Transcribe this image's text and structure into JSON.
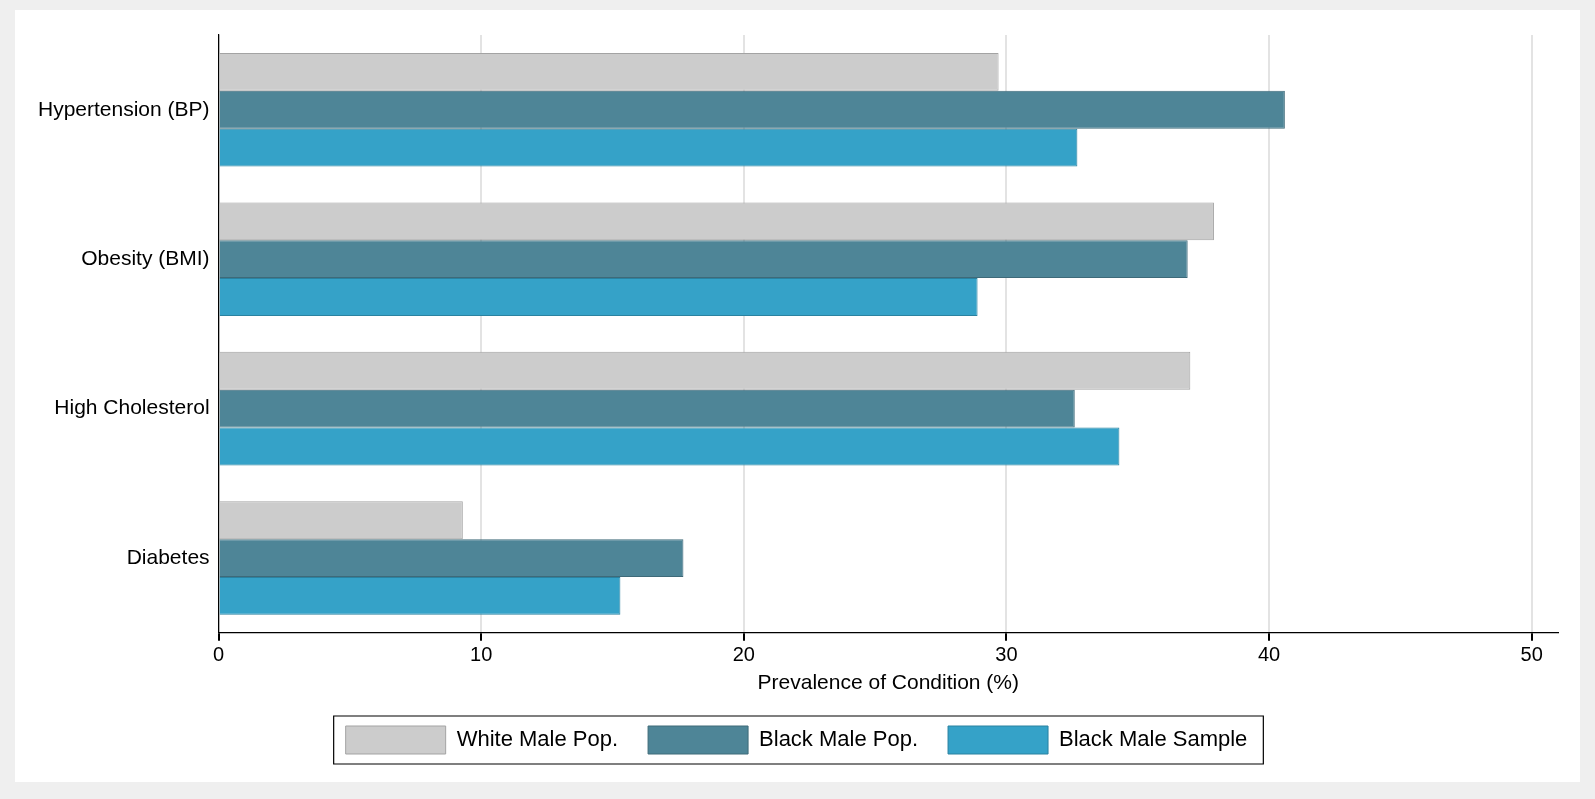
{
  "chart_data": {
    "type": "bar",
    "orientation": "horizontal",
    "categories": [
      "Hypertension (BP)",
      "Obesity (BMI)",
      "High Cholesterol",
      "Diabetes"
    ],
    "series": [
      {
        "name": "White Male Pop.",
        "color": "#cccccc",
        "values": [
          29.7,
          37.9,
          37.0,
          9.3
        ]
      },
      {
        "name": "Black Male Pop.",
        "color": "#4e8597",
        "values": [
          40.6,
          36.9,
          32.6,
          17.7
        ]
      },
      {
        "name": "Black Male Sample",
        "color": "#35a2c8",
        "values": [
          32.7,
          28.9,
          34.3,
          15.3
        ]
      }
    ],
    "xlabel": "Prevalence of Condition (%)",
    "xlim": [
      0,
      51
    ],
    "xticks": [
      0,
      10,
      20,
      30,
      40,
      50
    ],
    "grid": "x",
    "legend": "bottom"
  }
}
